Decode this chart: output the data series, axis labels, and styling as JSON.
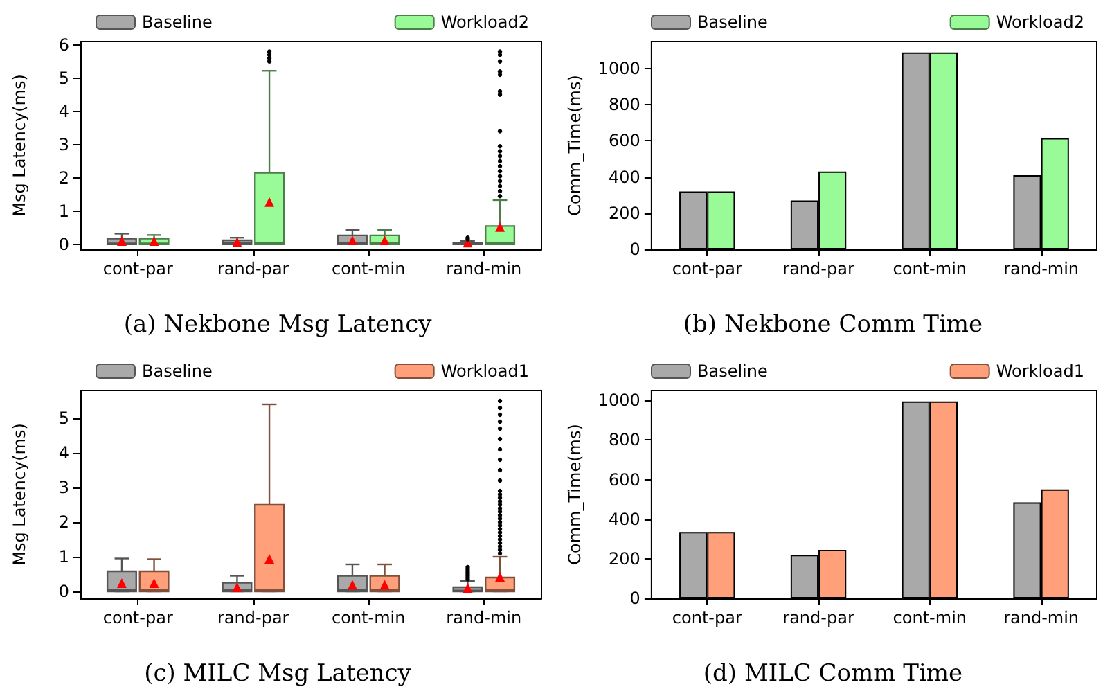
{
  "chart_data": [
    {
      "type": "box",
      "title": "(a) Nekbone Msg Latency",
      "ylabel": "Msg Latency(ms)",
      "categories": [
        "cont-par",
        "rand-par",
        "cont-min",
        "rand-min"
      ],
      "ylim": [
        -0.15,
        6.1
      ],
      "yticks": [
        0,
        1,
        2,
        3,
        4,
        5,
        6
      ],
      "grid": false,
      "legend": "top",
      "series": [
        {
          "name": "Baseline",
          "color": "#a9a9a9",
          "boxes": [
            {
              "low": 0,
              "q1": 0,
              "median": 0.02,
              "q3": 0.17,
              "high": 0.32,
              "mean": 0.08
            },
            {
              "low": 0,
              "q1": 0,
              "median": 0.03,
              "q3": 0.12,
              "high": 0.2,
              "mean": 0.05
            },
            {
              "low": 0,
              "q1": 0,
              "median": 0.03,
              "q3": 0.27,
              "high": 0.43,
              "mean": 0.1
            },
            {
              "low": 0,
              "q1": 0,
              "median": 0.02,
              "q3": 0.05,
              "high": 0.1,
              "mean": 0.03,
              "outliers": [
                0.15,
                0.2
              ]
            }
          ]
        },
        {
          "name": "Workload2",
          "color": "#98fb98",
          "boxes": [
            {
              "low": 0,
              "q1": 0,
              "median": 0.02,
              "q3": 0.17,
              "high": 0.28,
              "mean": 0.08
            },
            {
              "low": 0,
              "q1": 0,
              "median": 0.03,
              "q3": 2.15,
              "high": 5.22,
              "mean": 1.25,
              "outliers": [
                5.5,
                5.6,
                5.7,
                5.8
              ]
            },
            {
              "low": 0,
              "q1": 0,
              "median": 0.03,
              "q3": 0.27,
              "high": 0.43,
              "mean": 0.1
            },
            {
              "low": 0,
              "q1": 0,
              "median": 0.03,
              "q3": 0.55,
              "high": 1.33,
              "mean": 0.5,
              "outliers": [
                1.45,
                1.6,
                1.75,
                1.9,
                2.05,
                2.2,
                2.35,
                2.5,
                2.65,
                2.8,
                2.95,
                3.4,
                4.5,
                4.6,
                5.1,
                5.2,
                5.5,
                5.7,
                5.8
              ]
            }
          ]
        }
      ]
    },
    {
      "type": "bar",
      "title": "(b) Nekbone Comm Time",
      "ylabel": "Comm_Time(ms)",
      "categories": [
        "cont-par",
        "rand-par",
        "cont-min",
        "rand-min"
      ],
      "ylim": [
        0,
        1150
      ],
      "yticks": [
        0,
        200,
        400,
        600,
        800,
        1000
      ],
      "grid": false,
      "legend": "top",
      "series": [
        {
          "name": "Baseline",
          "color": "#a9a9a9",
          "values": [
            320,
            270,
            1090,
            410
          ]
        },
        {
          "name": "Workload2",
          "color": "#98fb98",
          "values": [
            320,
            430,
            1090,
            615
          ]
        }
      ]
    },
    {
      "type": "box",
      "title": "(c) MILC Msg Latency",
      "ylabel": "Msg Latency(ms)",
      "categories": [
        "cont-par",
        "rand-par",
        "cont-min",
        "rand-min"
      ],
      "ylim": [
        -0.2,
        5.8
      ],
      "yticks": [
        0,
        1,
        2,
        3,
        4,
        5
      ],
      "grid": false,
      "legend": "top",
      "series": [
        {
          "name": "Baseline",
          "color": "#a9a9a9",
          "boxes": [
            {
              "low": 0,
              "q1": 0,
              "median": 0.03,
              "q3": 0.58,
              "high": 0.95,
              "mean": 0.22
            },
            {
              "low": 0,
              "q1": 0,
              "median": 0.03,
              "q3": 0.25,
              "high": 0.45,
              "mean": 0.1
            },
            {
              "low": 0,
              "q1": 0,
              "median": 0.03,
              "q3": 0.45,
              "high": 0.78,
              "mean": 0.17
            },
            {
              "low": 0,
              "q1": 0,
              "median": 0.02,
              "q3": 0.12,
              "high": 0.3,
              "mean": 0.08,
              "outliers": [
                0.35,
                0.4,
                0.45,
                0.5,
                0.55,
                0.6,
                0.65,
                0.7
              ]
            }
          ]
        },
        {
          "name": "Workload1",
          "color": "#ffa07a",
          "boxes": [
            {
              "low": 0,
              "q1": 0,
              "median": 0.03,
              "q3": 0.58,
              "high": 0.93,
              "mean": 0.22
            },
            {
              "low": 0,
              "q1": 0,
              "median": 0.03,
              "q3": 2.5,
              "high": 5.4,
              "mean": 0.92
            },
            {
              "low": 0,
              "q1": 0,
              "median": 0.03,
              "q3": 0.45,
              "high": 0.78,
              "mean": 0.17
            },
            {
              "low": 0,
              "q1": 0,
              "median": 0.03,
              "q3": 0.4,
              "high": 1.0,
              "mean": 0.4,
              "outliers": [
                1.1,
                1.2,
                1.3,
                1.4,
                1.5,
                1.6,
                1.7,
                1.8,
                1.9,
                2.0,
                2.1,
                2.2,
                2.3,
                2.4,
                2.5,
                2.6,
                2.7,
                2.8,
                2.9,
                3.2,
                3.5,
                3.8,
                4.1,
                4.4,
                4.7,
                4.9,
                5.1,
                5.3,
                5.5
              ]
            }
          ]
        }
      ]
    },
    {
      "type": "bar",
      "title": "(d) MILC Comm Time",
      "ylabel": "Comm_Time(ms)",
      "categories": [
        "cont-par",
        "rand-par",
        "cont-min",
        "rand-min"
      ],
      "ylim": [
        0,
        1050
      ],
      "yticks": [
        0,
        200,
        400,
        600,
        800,
        1000
      ],
      "grid": false,
      "legend": "top",
      "series": [
        {
          "name": "Baseline",
          "color": "#a9a9a9",
          "values": [
            335,
            220,
            995,
            485
          ]
        },
        {
          "name": "Workload1",
          "color": "#ffa07a",
          "values": [
            335,
            245,
            995,
            550
          ]
        }
      ]
    }
  ]
}
